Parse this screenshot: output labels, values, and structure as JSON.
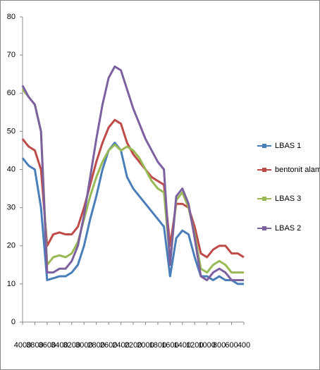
{
  "chart_data": {
    "type": "line",
    "x": [
      4000,
      3900,
      3800,
      3700,
      3600,
      3500,
      3400,
      3300,
      3200,
      3100,
      3000,
      2900,
      2800,
      2700,
      2600,
      2500,
      2400,
      2300,
      2200,
      2100,
      2000,
      1900,
      1800,
      1700,
      1600,
      1500,
      1400,
      1300,
      1200,
      1100,
      1000,
      900,
      800,
      700,
      600,
      500,
      400
    ],
    "series": [
      {
        "name": "LBAS 1",
        "color": "#4a7ebb",
        "values": [
          43,
          41,
          40,
          30,
          11,
          11.5,
          12,
          12,
          13,
          15,
          20,
          27,
          33,
          40,
          45,
          47,
          45,
          38,
          35,
          33,
          31,
          29,
          27,
          25,
          12,
          22,
          24,
          23,
          17,
          12,
          12,
          11,
          12,
          11,
          11,
          10,
          10
        ]
      },
      {
        "name": "bentonit alam",
        "color": "#be4b48",
        "values": [
          48,
          46,
          45,
          40,
          20,
          23,
          23.5,
          23,
          23,
          25,
          30,
          36,
          42,
          47,
          51,
          53,
          52,
          47,
          44,
          42,
          40,
          38,
          37,
          36,
          20,
          31,
          31,
          30,
          25,
          18,
          17,
          19,
          20,
          20,
          18,
          18,
          17
        ]
      },
      {
        "name": "LBAS 3",
        "color": "#98b954",
        "values": [
          61,
          59,
          57,
          50,
          15,
          17,
          17.5,
          17,
          18,
          21,
          27,
          33,
          38,
          42,
          45,
          46.5,
          45,
          46,
          45,
          43,
          40,
          37,
          35,
          34,
          16,
          32,
          34,
          30,
          23,
          14,
          13,
          15,
          16,
          15,
          13,
          13,
          13
        ]
      },
      {
        "name": "LBAS 2",
        "color": "#7d60a0",
        "values": [
          62,
          59,
          57,
          50,
          13,
          13,
          14,
          14,
          16,
          20,
          28,
          38,
          48,
          57,
          64,
          67,
          66,
          61,
          56,
          52,
          48,
          45,
          42,
          40,
          15,
          33,
          35,
          31,
          22,
          12,
          11,
          13,
          14,
          13,
          11,
          11,
          11
        ]
      }
    ],
    "xlim": [
      4000,
      400
    ],
    "xticks": [
      4000,
      3800,
      3600,
      3400,
      3200,
      3000,
      2800,
      2600,
      2400,
      2200,
      2000,
      1800,
      1600,
      1400,
      1200,
      1000,
      800,
      600,
      400
    ],
    "ylim": [
      0,
      80
    ],
    "yticks": [
      0,
      10,
      20,
      30,
      40,
      50,
      60,
      70,
      80
    ],
    "legend": "right"
  }
}
